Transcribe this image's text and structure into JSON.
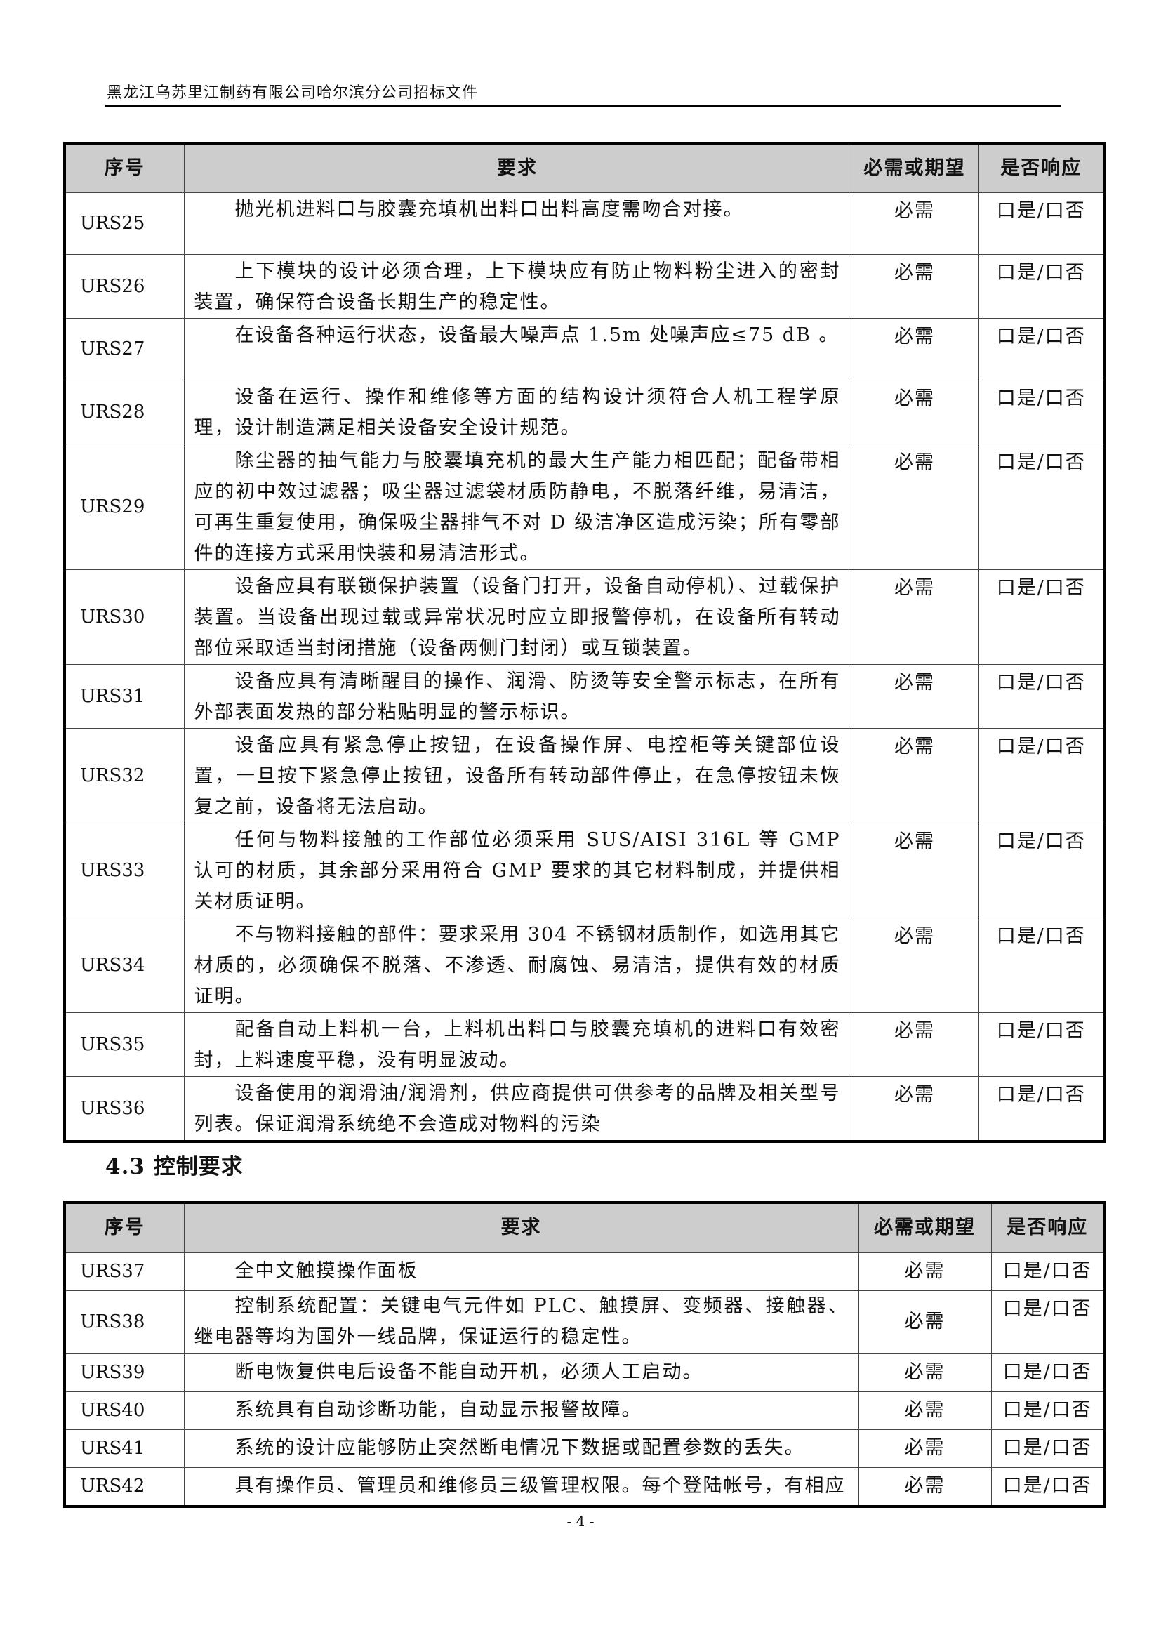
{
  "header": {
    "title": "黑龙江乌苏里江制药有限公司哈尔滨分公司招标文件"
  },
  "columns": {
    "id": "序号",
    "req": "要求",
    "must": "必需或期望",
    "resp": "是否响应"
  },
  "table1": [
    {
      "id": "URS25",
      "req": "抛光机进料口与胶囊充填机出料口出料高度需吻合对接。",
      "must": "必需",
      "resp": "口是/口否"
    },
    {
      "id": "URS26",
      "req": "上下模块的设计必须合理，上下模块应有防止物料粉尘进入的密封装置，确保符合设备长期生产的稳定性。",
      "must": "必需",
      "resp": "口是/口否"
    },
    {
      "id": "URS27",
      "req": "在设备各种运行状态，设备最大噪声点 1.5m 处噪声应≤75 dB 。",
      "must": "必需",
      "resp": "口是/口否"
    },
    {
      "id": "URS28",
      "req": "设备在运行、操作和维修等方面的结构设计须符合人机工程学原理，设计制造满足相关设备安全设计规范。",
      "must": "必需",
      "resp": "口是/口否"
    },
    {
      "id": "URS29",
      "req": "除尘器的抽气能力与胶囊填充机的最大生产能力相匹配；配备带相应的初中效过滤器；吸尘器过滤袋材质防静电，不脱落纤维，易清洁，可再生重复使用，确保吸尘器排气不对 D 级洁净区造成污染；所有零部件的连接方式采用快装和易清洁形式。",
      "must": "必需",
      "resp": "口是/口否"
    },
    {
      "id": "URS30",
      "req": "设备应具有联锁保护装置（设备门打开，设备自动停机）、过载保护装置。当设备出现过载或异常状况时应立即报警停机，在设备所有转动部位采取适当封闭措施（设备两侧门封闭）或互锁装置。",
      "must": "必需",
      "resp": "口是/口否"
    },
    {
      "id": "URS31",
      "req": "设备应具有清晰醒目的操作、润滑、防烫等安全警示标志，在所有外部表面发热的部分粘贴明显的警示标识。",
      "must": "必需",
      "resp": "口是/口否"
    },
    {
      "id": "URS32",
      "req": "设备应具有紧急停止按钮，在设备操作屏、电控柜等关键部位设置，一旦按下紧急停止按钮，设备所有转动部件停止，在急停按钮未恢复之前，设备将无法启动。",
      "must": "必需",
      "resp": "口是/口否"
    },
    {
      "id": "URS33",
      "req": "任何与物料接触的工作部位必须采用 SUS/AISI  316L 等 GMP 认可的材质，其余部分采用符合 GMP 要求的其它材料制成，并提供相关材质证明。",
      "must": "必需",
      "resp": "口是/口否"
    },
    {
      "id": "URS34",
      "req": "不与物料接触的部件：要求采用 304 不锈钢材质制作，如选用其它材质的，必须确保不脱落、不渗透、耐腐蚀、易清洁，提供有效的材质证明。",
      "must": "必需",
      "resp": "口是/口否"
    },
    {
      "id": "URS35",
      "req": "配备自动上料机一台，上料机出料口与胶囊充填机的进料口有效密封，上料速度平稳，没有明显波动。",
      "must": "必需",
      "resp": "口是/口否"
    },
    {
      "id": "URS36",
      "req": "设备使用的润滑油/润滑剂，供应商提供可供参考的品牌及相关型号列表。保证润滑系统绝不会造成对物料的污染",
      "must": "必需",
      "resp": "口是/口否"
    }
  ],
  "section": {
    "title": "4.3 控制要求"
  },
  "table2": [
    {
      "id": "URS37",
      "req": "全中文触摸操作面板",
      "must": "必需",
      "resp": "口是/口否"
    },
    {
      "id": "URS38",
      "req": "控制系统配置：关键电气元件如 PLC、触摸屏、变频器、接触器、继电器等均为国外一线品牌，保证运行的稳定性。",
      "must": "必需",
      "resp": "口是/口否"
    },
    {
      "id": "URS39",
      "req": "断电恢复供电后设备不能自动开机，必须人工启动。",
      "must": "必需",
      "resp": "口是/口否"
    },
    {
      "id": "URS40",
      "req": "系统具有自动诊断功能，自动显示报警故障。",
      "must": "必需",
      "resp": "口是/口否"
    },
    {
      "id": "URS41",
      "req": "系统的设计应能够防止突然断电情况下数据或配置参数的丢失。",
      "must": "必需",
      "resp": "口是/口否"
    },
    {
      "id": "URS42",
      "req": "具有操作员、管理员和维修员三级管理权限。每个登陆帐号，有相应",
      "must": "必需",
      "resp": "口是/口否"
    }
  ],
  "footer": {
    "page": "- 4 -"
  }
}
